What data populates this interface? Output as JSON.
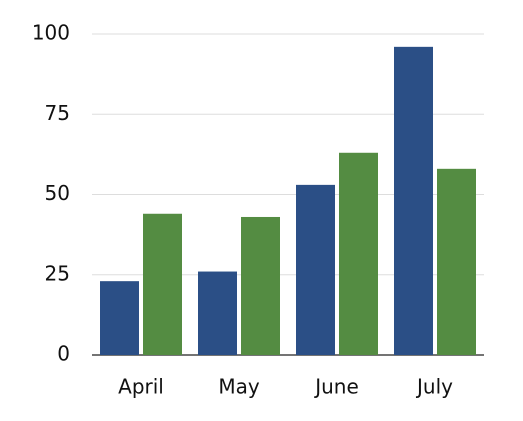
{
  "chart_data": {
    "type": "bar",
    "categories": [
      "April",
      "May",
      "June",
      "July"
    ],
    "series": [
      {
        "color": "#2b4f86",
        "values": [
          23,
          26,
          53,
          96
        ]
      },
      {
        "color": "#548c42",
        "values": [
          44,
          43,
          63,
          58
        ]
      }
    ],
    "ylim": [
      0,
      100
    ],
    "yticks": [
      0,
      25,
      50,
      75,
      100
    ],
    "grid": true
  }
}
